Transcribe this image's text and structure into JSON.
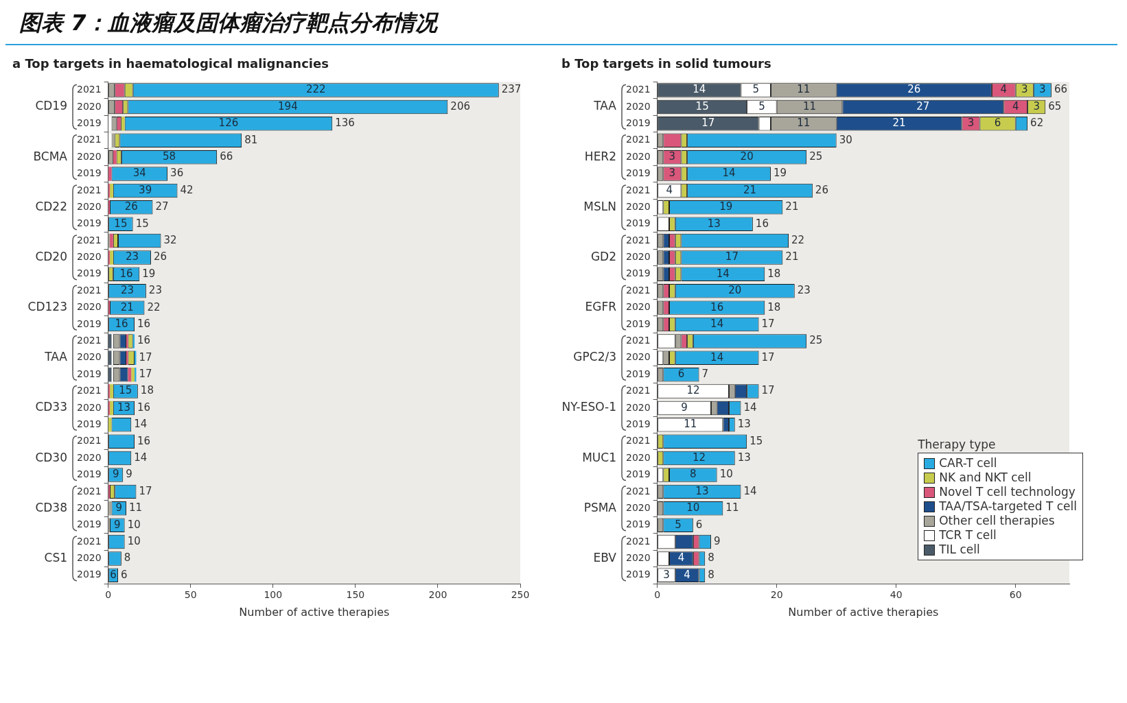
{
  "chart_data": [
    {
      "type": "bar",
      "orientation": "horizontal",
      "stacked": true,
      "title": "图表 7：血液瘤及固体瘤治疗靶点分布情况",
      "subtitle": "a  Top targets in haematological malignancies",
      "xlabel": "Number of active therapies",
      "xlim": [
        0,
        250
      ],
      "xticks": [
        0,
        50,
        100,
        150,
        200,
        250
      ],
      "legend": false,
      "categories": [
        "2021",
        "2020",
        "2019",
        "2021",
        "2020",
        "2019",
        "2021",
        "2020",
        "2019",
        "2021",
        "2020",
        "2019",
        "2021",
        "2020",
        "2019",
        "2021",
        "2020",
        "2019",
        "2021",
        "2020",
        "2019",
        "2021",
        "2020",
        "2019",
        "2021",
        "2020",
        "2019",
        "2021",
        "2020",
        "2019"
      ],
      "annotations": [
        "CD19",
        "BCMA",
        "CD22",
        "CD20",
        "CD123",
        "TAA",
        "CD33",
        "CD30",
        "CD38",
        "CS1"
      ],
      "series": [
        {
          "color": "#4a5a68",
          "values": [
            null,
            null,
            null,
            null,
            null,
            null,
            null,
            null,
            null,
            null,
            null,
            null,
            null,
            null,
            null,
            2,
            2,
            2,
            null,
            null,
            null,
            null,
            null,
            null,
            null,
            null,
            null,
            null,
            null,
            null
          ]
        },
        {
          "color": "#ffffff",
          "values": [
            null,
            null,
            2,
            2,
            null,
            null,
            null,
            null,
            null,
            null,
            null,
            null,
            null,
            null,
            null,
            1,
            1,
            1,
            null,
            null,
            null,
            null,
            null,
            null,
            null,
            null,
            null,
            null,
            null,
            null
          ]
        },
        {
          "color": "#a8a59a",
          "values": [
            4,
            4,
            3,
            2,
            3,
            null,
            null,
            null,
            null,
            1,
            null,
            null,
            null,
            null,
            null,
            4,
            4,
            4,
            null,
            null,
            null,
            null,
            null,
            null,
            null,
            2,
            1,
            null,
            null,
            null
          ]
        },
        {
          "color": "#1e4f8c",
          "values": [
            null,
            null,
            null,
            null,
            null,
            null,
            null,
            null,
            null,
            null,
            null,
            null,
            null,
            null,
            null,
            4,
            4,
            5,
            null,
            null,
            null,
            null,
            null,
            null,
            null,
            null,
            null,
            null,
            null,
            null
          ]
        },
        {
          "color": "#d9577a",
          "values": [
            6,
            5,
            3,
            null,
            2,
            2,
            1,
            1,
            null,
            2,
            1,
            null,
            null,
            1,
            null,
            1,
            1,
            2,
            1,
            1,
            null,
            null,
            null,
            null,
            1,
            null,
            null,
            null,
            null,
            null
          ]
        },
        {
          "color": "#c8cc4e",
          "values": [
            5,
            3,
            2,
            3,
            3,
            null,
            2,
            null,
            null,
            3,
            2,
            3,
            null,
            null,
            null,
            3,
            4,
            2,
            2,
            2,
            2,
            null,
            null,
            null,
            3,
            null,
            null,
            null,
            null,
            null
          ]
        },
        {
          "color": "#29abe2",
          "values": [
            222,
            194,
            126,
            74,
            58,
            34,
            39,
            26,
            15,
            26,
            23,
            16,
            23,
            21,
            16,
            1,
            1,
            1,
            15,
            13,
            12,
            16,
            14,
            9,
            13,
            9,
            9,
            10,
            8,
            6
          ],
          "value_labels": [
            "222",
            "194",
            "126",
            null,
            "58",
            "34",
            "39",
            "26",
            "15",
            null,
            "23",
            "16",
            "23",
            "21",
            "16",
            null,
            null,
            null,
            "15",
            "13",
            null,
            null,
            null,
            "9",
            null,
            "9",
            "9",
            null,
            null,
            "6"
          ]
        }
      ],
      "totals": [
        "237",
        "206",
        "136",
        "81",
        "66",
        "36",
        "42",
        "27",
        "15",
        "32",
        "26",
        "19",
        "23",
        "22",
        "16",
        "16",
        "17",
        "17",
        "18",
        "16",
        "14",
        "16",
        "14",
        "9",
        "17",
        "11",
        "10",
        "10",
        "8",
        "6"
      ]
    },
    {
      "type": "bar",
      "orientation": "horizontal",
      "stacked": true,
      "subtitle": "b  Top targets in solid tumours",
      "xlabel": "Number of active therapies",
      "xlim": [
        0,
        69
      ],
      "xticks": [
        0,
        20,
        40,
        60
      ],
      "legend": "bottom right",
      "legend_title": "Therapy type",
      "categories": [
        "2021",
        "2020",
        "2019",
        "2021",
        "2020",
        "2019",
        "2021",
        "2020",
        "2019",
        "2021",
        "2020",
        "2019",
        "2021",
        "2020",
        "2019",
        "2021",
        "2020",
        "2019",
        "2021",
        "2020",
        "2019",
        "2021",
        "2020",
        "2019",
        "2021",
        "2020",
        "2019",
        "2021",
        "2020",
        "2019"
      ],
      "annotations": [
        "TAA",
        "HER2",
        "MSLN",
        "GD2",
        "EGFR",
        "GPC2/3",
        "NY-ESO-1",
        "MUC1",
        "PSMA",
        "EBV"
      ],
      "series": [
        {
          "name": "TIL cell",
          "color": "#4a5a68",
          "values": [
            14,
            15,
            17,
            null,
            null,
            null,
            null,
            null,
            null,
            null,
            null,
            null,
            null,
            null,
            null,
            null,
            null,
            null,
            null,
            null,
            null,
            null,
            null,
            null,
            null,
            null,
            null,
            null,
            null,
            null
          ],
          "value_labels": [
            "14",
            "15",
            "17",
            null,
            null,
            null,
            null,
            null,
            null,
            null,
            null,
            null,
            null,
            null,
            null,
            null,
            null,
            null,
            null,
            null,
            null,
            null,
            null,
            null,
            null,
            null,
            null,
            null,
            null,
            null
          ]
        },
        {
          "name": "TCR T cell",
          "color": "#ffffff",
          "values": [
            5,
            5,
            2,
            null,
            null,
            null,
            4,
            1,
            2,
            null,
            null,
            null,
            null,
            null,
            null,
            3,
            1,
            null,
            12,
            9,
            11,
            null,
            null,
            1,
            null,
            null,
            null,
            3,
            2,
            3
          ],
          "value_labels": [
            "5",
            "5",
            null,
            null,
            null,
            null,
            "4",
            null,
            null,
            null,
            null,
            null,
            null,
            null,
            null,
            null,
            null,
            null,
            "12",
            "9",
            "11",
            null,
            null,
            null,
            null,
            null,
            null,
            null,
            null,
            "3"
          ]
        },
        {
          "name": "Other cell therapies",
          "color": "#a8a59a",
          "values": [
            11,
            11,
            11,
            1,
            1,
            1,
            null,
            null,
            null,
            1,
            1,
            1,
            1,
            1,
            1,
            1,
            1,
            1,
            1,
            1,
            null,
            null,
            null,
            null,
            1,
            1,
            1,
            null,
            null,
            null
          ],
          "value_labels": [
            "11",
            "11",
            "11",
            null,
            null,
            null,
            null,
            null,
            null,
            null,
            null,
            null,
            null,
            null,
            null,
            null,
            null,
            null,
            null,
            null,
            null,
            null,
            null,
            null,
            null,
            null,
            null,
            null,
            null,
            null
          ]
        },
        {
          "name": "TAA/TSA-targeted T cell",
          "color": "#1e4f8c",
          "values": [
            26,
            27,
            21,
            null,
            null,
            null,
            null,
            null,
            null,
            1,
            1,
            1,
            null,
            null,
            null,
            null,
            null,
            null,
            2,
            2,
            1,
            null,
            null,
            null,
            null,
            null,
            null,
            3,
            4,
            4
          ],
          "value_labels": [
            "26",
            "27",
            "21",
            null,
            null,
            null,
            null,
            null,
            null,
            null,
            null,
            null,
            null,
            null,
            null,
            null,
            null,
            null,
            null,
            null,
            null,
            null,
            null,
            null,
            null,
            null,
            null,
            null,
            "4",
            "4"
          ]
        },
        {
          "name": "Novel T cell technology",
          "color": "#d9577a",
          "values": [
            4,
            4,
            3,
            3,
            3,
            3,
            null,
            null,
            null,
            1,
            1,
            1,
            1,
            1,
            1,
            1,
            null,
            null,
            null,
            null,
            null,
            null,
            null,
            null,
            null,
            null,
            null,
            1,
            1,
            null
          ],
          "value_labels": [
            "4",
            "4",
            "3",
            null,
            "3",
            "3",
            null,
            null,
            null,
            null,
            null,
            null,
            null,
            null,
            null,
            null,
            null,
            null,
            null,
            null,
            null,
            null,
            null,
            null,
            null,
            null,
            null,
            null,
            null,
            null
          ]
        },
        {
          "name": "NK and NKT cell",
          "color": "#c8cc4e",
          "values": [
            3,
            3,
            6,
            1,
            1,
            1,
            1,
            1,
            1,
            1,
            1,
            1,
            1,
            null,
            1,
            1,
            1,
            null,
            null,
            null,
            null,
            1,
            1,
            1,
            null,
            null,
            null,
            null,
            null,
            null
          ],
          "value_labels": [
            "3",
            "3",
            "6",
            null,
            null,
            null,
            null,
            null,
            null,
            null,
            null,
            null,
            null,
            null,
            null,
            null,
            null,
            null,
            null,
            null,
            null,
            null,
            null,
            null,
            null,
            null,
            null,
            null,
            null,
            null
          ]
        },
        {
          "name": "CAR-T cell",
          "color": "#29abe2",
          "values": [
            3,
            null,
            2,
            25,
            20,
            14,
            21,
            19,
            13,
            18,
            17,
            14,
            20,
            16,
            14,
            19,
            14,
            6,
            2,
            2,
            1,
            14,
            12,
            8,
            13,
            10,
            5,
            2,
            1,
            1
          ],
          "value_labels": [
            "3",
            null,
            null,
            null,
            "20",
            "14",
            "21",
            "19",
            "13",
            null,
            "17",
            "14",
            "20",
            "16",
            "14",
            null,
            "14",
            "6",
            null,
            null,
            null,
            null,
            "12",
            "8",
            "13",
            "10",
            "5",
            null,
            null,
            null
          ]
        }
      ],
      "totals": [
        "66",
        "65",
        "62",
        "30",
        "25",
        "19",
        "26",
        "21",
        "16",
        "22",
        "21",
        "18",
        "23",
        "18",
        "17",
        "25",
        "17",
        "7",
        "17",
        "14",
        "13",
        "15",
        "13",
        "10",
        "14",
        "11",
        "6",
        "9",
        "8",
        "8"
      ]
    }
  ]
}
